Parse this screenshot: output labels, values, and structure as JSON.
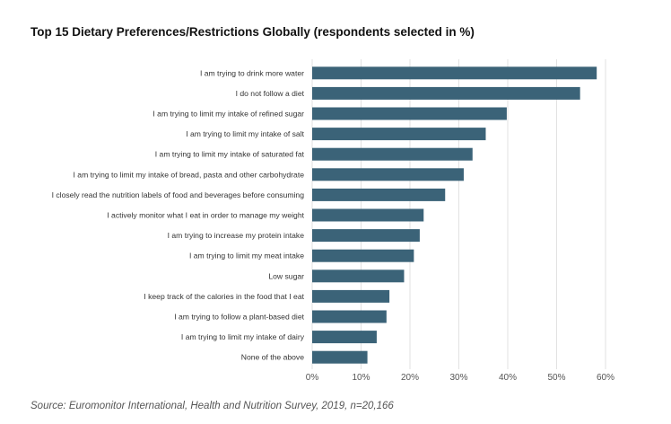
{
  "chart_data": {
    "type": "bar",
    "orientation": "horizontal",
    "title": "Top 15 Dietary Preferences/Restrictions Globally (respondents selected in %)",
    "categories": [
      "I am trying to drink more water",
      "I do not follow a diet",
      "I am trying to limit my intake of refined sugar",
      "I am trying to limit my intake of salt",
      "I am trying to limit my intake of saturated fat",
      "I am trying to limit my intake of bread, pasta and other carbohydrate",
      "I closely read the nutrition labels of food and beverages before consuming",
      "I actively monitor what I eat in order to manage my weight",
      "I am trying to increase my protein intake",
      "I am trying to limit my meat intake",
      "Low sugar",
      "I keep track of the calories in the food that I eat",
      "I am trying to follow a plant-based diet",
      "I am trying to limit my intake of dairy",
      "None of the above"
    ],
    "values": [
      58.2,
      54.8,
      39.8,
      35.5,
      32.8,
      31.0,
      27.2,
      22.8,
      22.0,
      20.8,
      18.8,
      15.8,
      15.2,
      13.2,
      11.3
    ],
    "xlim": [
      0,
      60
    ],
    "xticks": [
      0,
      10,
      20,
      30,
      40,
      50,
      60
    ],
    "tick_labels": [
      "0%",
      "10%",
      "20%",
      "30%",
      "40%",
      "50%",
      "60%"
    ],
    "grid": true,
    "bar_color": "#3b6378",
    "grid_color": "#e2e2e2",
    "xlabel": "",
    "ylabel": ""
  },
  "source": "Source: Euromonitor International, Health and Nutrition Survey, 2019, n=20,166"
}
